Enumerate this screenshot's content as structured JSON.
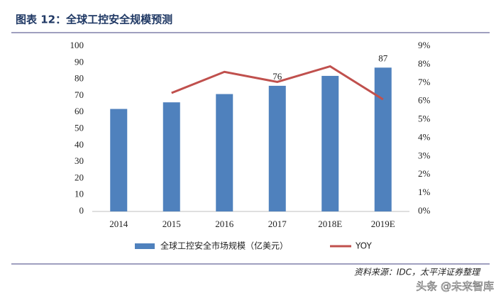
{
  "header": {
    "title": "图表 12：全球工控安全规模预测"
  },
  "chart_data": {
    "type": "bar-line",
    "categories": [
      "2014",
      "2015",
      "2016",
      "2017",
      "2018E",
      "2019E"
    ],
    "series": [
      {
        "name": "全球工控安全市场规模（亿美元）",
        "color": "#4f81bd",
        "type": "bar",
        "values": [
          62,
          66,
          71,
          76,
          82,
          87
        ],
        "value_labels": [
          null,
          null,
          null,
          "76",
          null,
          "87"
        ]
      },
      {
        "name": "YOY",
        "color": "#c0504d",
        "type": "line",
        "axis": "y2",
        "values": [
          null,
          6.45,
          7.6,
          7.05,
          7.9,
          6.1
        ]
      }
    ],
    "ylim": [
      0,
      100
    ],
    "yticks": [
      0,
      10,
      20,
      30,
      40,
      50,
      60,
      70,
      80,
      90,
      100
    ],
    "y2lim": [
      0,
      9
    ],
    "y2ticks": [
      {
        "value": 0,
        "label": "0%"
      },
      {
        "value": 1,
        "label": "1%"
      },
      {
        "value": 2,
        "label": "2%"
      },
      {
        "value": 3,
        "label": "3%"
      },
      {
        "value": 4,
        "label": "4%"
      },
      {
        "value": 5,
        "label": "5%"
      },
      {
        "value": 6,
        "label": "6%"
      },
      {
        "value": 7,
        "label": "7%"
      },
      {
        "value": 8,
        "label": "8%"
      },
      {
        "value": 9,
        "label": "9%"
      }
    ],
    "grid": false
  },
  "footer": {
    "source": "资料来源：IDC，太平洋证券整理",
    "watermark": "头条 @未来智库"
  }
}
